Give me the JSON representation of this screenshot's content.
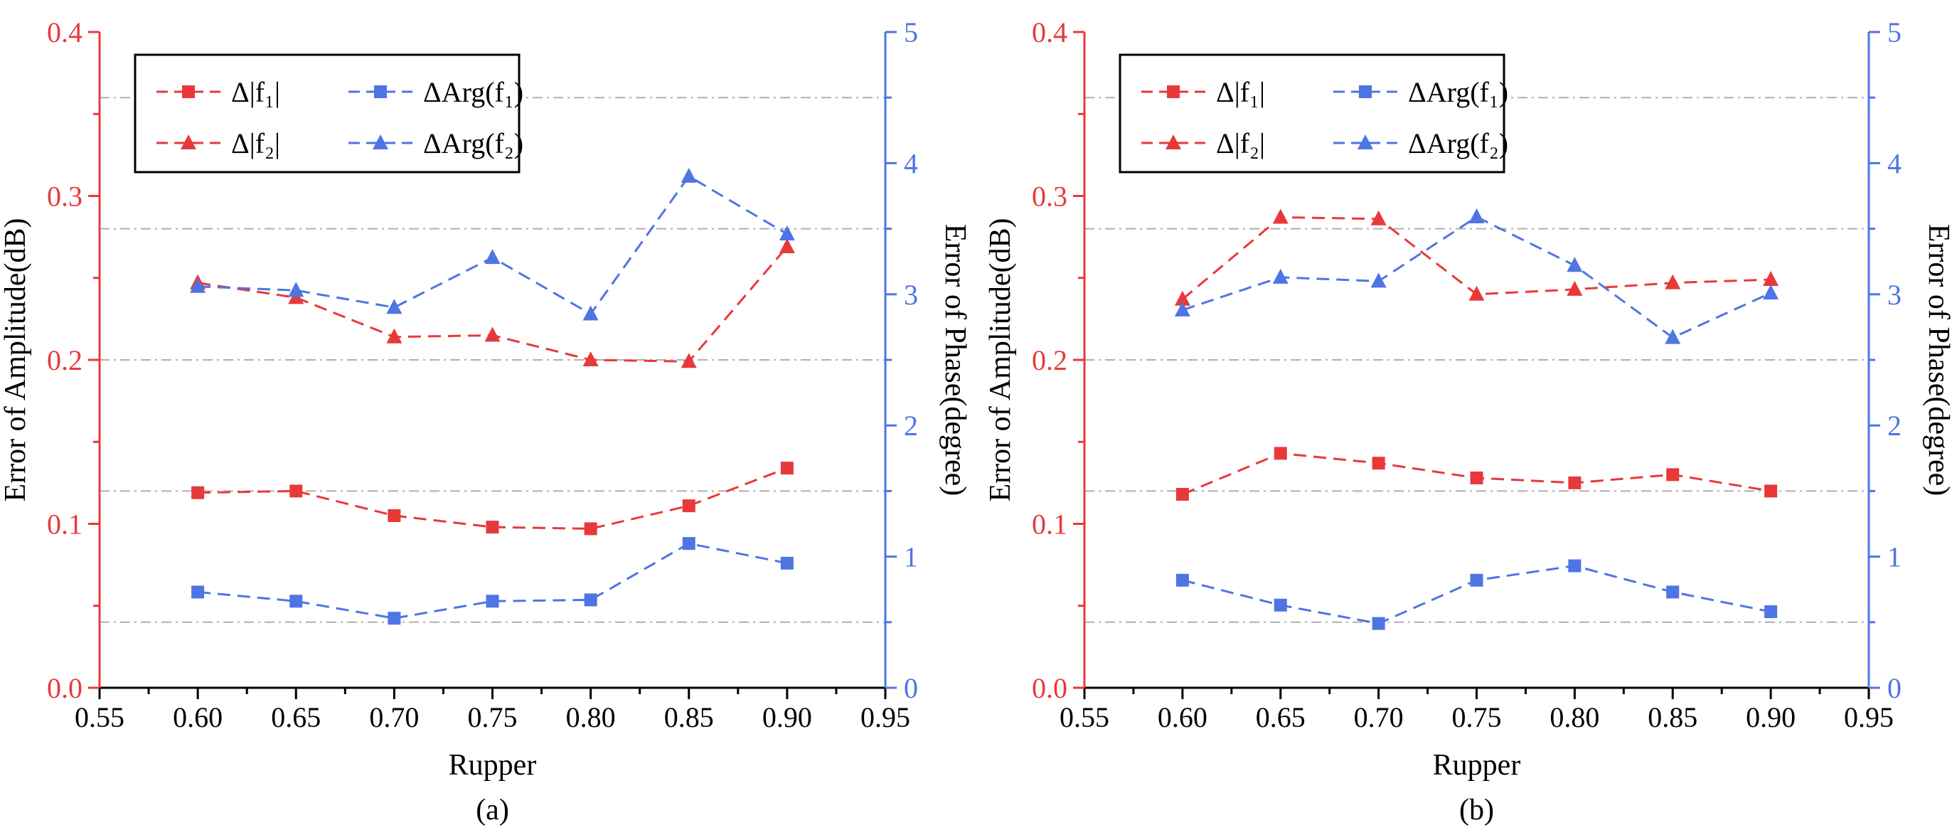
{
  "colors": {
    "amplitude": "#e8393a",
    "phase": "#4f74e3",
    "grid": "#b0b0b0",
    "axis": "#000000"
  },
  "legend_labels": {
    "f1_amp": "Δ|f₁|",
    "f2_amp": "Δ|f₂|",
    "f1_phase": "ΔArg(f₁)",
    "f2_phase": "ΔArg(f₂)"
  },
  "chart_data": [
    {
      "type": "line",
      "panel_label": "(a)",
      "xlabel": "Rupper",
      "ylabel": "Error of Amplitude(dB)",
      "y2label": "Error of Phase(degree)",
      "xlim": [
        0.55,
        0.95
      ],
      "ylim": [
        0.0,
        0.4
      ],
      "y2lim": [
        0,
        5
      ],
      "xticks": [
        "0.55",
        "0.60",
        "0.65",
        "0.70",
        "0.75",
        "0.80",
        "0.85",
        "0.90",
        "0.95"
      ],
      "yticks": [
        "0.0",
        "0.1",
        "0.2",
        "0.3",
        "0.4"
      ],
      "y2ticks": [
        "0",
        "1",
        "2",
        "3",
        "4",
        "5"
      ],
      "gridlines_y": [
        0.04,
        0.12,
        0.2,
        0.28,
        0.36
      ],
      "legend_position": "top-left",
      "x": [
        0.6,
        0.65,
        0.7,
        0.75,
        0.8,
        0.85,
        0.9
      ],
      "series": [
        {
          "key": "f1_amp",
          "name": "Δ|f1|",
          "axis": "left",
          "marker": "square",
          "values": [
            0.119,
            0.12,
            0.105,
            0.098,
            0.097,
            0.111,
            0.134
          ]
        },
        {
          "key": "f2_amp",
          "name": "Δ|f2|",
          "axis": "left",
          "marker": "triangle",
          "values": [
            0.247,
            0.238,
            0.214,
            0.215,
            0.2,
            0.199,
            0.269
          ]
        },
        {
          "key": "f1_phase",
          "name": "ΔArg(f1)",
          "axis": "right",
          "marker": "square",
          "values": [
            0.73,
            0.66,
            0.53,
            0.66,
            0.67,
            1.1,
            0.95
          ]
        },
        {
          "key": "f2_phase",
          "name": "ΔArg(f2)",
          "axis": "right",
          "marker": "triangle",
          "values": [
            3.06,
            3.03,
            2.9,
            3.28,
            2.85,
            3.9,
            3.46
          ]
        }
      ]
    },
    {
      "type": "line",
      "panel_label": "(b)",
      "xlabel": "Rupper",
      "ylabel": "Error of Amplitude(dB)",
      "y2label": "Error of Phase(degree)",
      "xlim": [
        0.55,
        0.95
      ],
      "ylim": [
        0.0,
        0.4
      ],
      "y2lim": [
        0,
        5
      ],
      "xticks": [
        "0.55",
        "0.60",
        "0.65",
        "0.70",
        "0.75",
        "0.80",
        "0.85",
        "0.90",
        "0.95"
      ],
      "yticks": [
        "0.0",
        "0.1",
        "0.2",
        "0.3",
        "0.4"
      ],
      "y2ticks": [
        "0",
        "1",
        "2",
        "3",
        "4",
        "5"
      ],
      "gridlines_y": [
        0.04,
        0.12,
        0.2,
        0.28,
        0.36
      ],
      "legend_position": "top-left",
      "x": [
        0.6,
        0.65,
        0.7,
        0.75,
        0.8,
        0.85,
        0.9
      ],
      "series": [
        {
          "key": "f1_amp",
          "name": "Δ|f1|",
          "axis": "left",
          "marker": "square",
          "values": [
            0.118,
            0.143,
            0.137,
            0.128,
            0.125,
            0.13,
            0.12
          ]
        },
        {
          "key": "f2_amp",
          "name": "Δ|f2|",
          "axis": "left",
          "marker": "triangle",
          "values": [
            0.237,
            0.287,
            0.286,
            0.24,
            0.243,
            0.247,
            0.249
          ]
        },
        {
          "key": "f1_phase",
          "name": "ΔArg(f1)",
          "axis": "right",
          "marker": "square",
          "values": [
            0.82,
            0.63,
            0.49,
            0.82,
            0.93,
            0.73,
            0.58
          ]
        },
        {
          "key": "f2_phase",
          "name": "ΔArg(f2)",
          "axis": "right",
          "marker": "triangle",
          "values": [
            2.88,
            3.13,
            3.1,
            3.59,
            3.22,
            2.67,
            3.01
          ]
        }
      ]
    }
  ]
}
